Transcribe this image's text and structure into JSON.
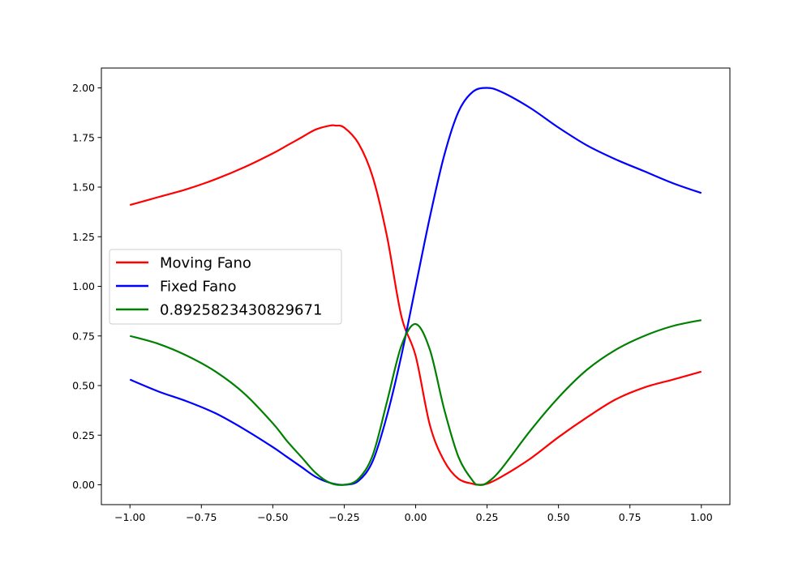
{
  "chart_data": {
    "type": "line",
    "xlim": [
      -1.1,
      1.1
    ],
    "ylim": [
      -0.1,
      2.1
    ],
    "xticks": [
      -1.0,
      -0.75,
      -0.5,
      -0.25,
      0.0,
      0.25,
      0.5,
      0.75,
      1.0
    ],
    "xtick_labels": [
      "−1.00",
      "−0.75",
      "−0.50",
      "−0.25",
      "0.00",
      "0.25",
      "0.50",
      "0.75",
      "1.00"
    ],
    "yticks": [
      0.0,
      0.25,
      0.5,
      0.75,
      1.0,
      1.25,
      1.5,
      1.75,
      2.0
    ],
    "ytick_labels": [
      "0.00",
      "0.25",
      "0.50",
      "0.75",
      "1.00",
      "1.25",
      "1.50",
      "1.75",
      "2.00"
    ],
    "grid": false,
    "legend_position": "center-left",
    "series": [
      {
        "name": "Moving Fano",
        "color": "#ff0000",
        "x": [
          -1.0,
          -0.9,
          -0.8,
          -0.7,
          -0.6,
          -0.5,
          -0.45,
          -0.4,
          -0.35,
          -0.3,
          -0.28,
          -0.25,
          -0.2,
          -0.15,
          -0.1,
          -0.05,
          0.0,
          0.05,
          0.1,
          0.15,
          0.2,
          0.22,
          0.25,
          0.3,
          0.4,
          0.5,
          0.6,
          0.7,
          0.8,
          0.9,
          1.0
        ],
        "values": [
          1.41,
          1.45,
          1.49,
          1.54,
          1.6,
          1.67,
          1.71,
          1.75,
          1.79,
          1.81,
          1.81,
          1.8,
          1.72,
          1.55,
          1.25,
          0.85,
          0.65,
          0.3,
          0.12,
          0.03,
          0.005,
          0.0,
          0.005,
          0.04,
          0.13,
          0.24,
          0.34,
          0.43,
          0.49,
          0.53,
          0.57
        ]
      },
      {
        "name": "Fixed Fano",
        "color": "#0000ff",
        "x": [
          -1.0,
          -0.9,
          -0.8,
          -0.7,
          -0.6,
          -0.5,
          -0.45,
          -0.4,
          -0.35,
          -0.3,
          -0.25,
          -0.2,
          -0.15,
          -0.1,
          -0.05,
          0.0,
          0.05,
          0.1,
          0.15,
          0.2,
          0.25,
          0.3,
          0.4,
          0.5,
          0.6,
          0.7,
          0.8,
          0.9,
          1.0
        ],
        "values": [
          0.53,
          0.47,
          0.42,
          0.36,
          0.28,
          0.19,
          0.14,
          0.09,
          0.04,
          0.01,
          0.0,
          0.02,
          0.12,
          0.35,
          0.65,
          1.0,
          1.35,
          1.66,
          1.88,
          1.98,
          2.0,
          1.98,
          1.9,
          1.8,
          1.71,
          1.64,
          1.58,
          1.52,
          1.47
        ]
      },
      {
        "name": "0.8925823430829671",
        "color": "#008000",
        "x": [
          -1.0,
          -0.9,
          -0.8,
          -0.7,
          -0.6,
          -0.5,
          -0.45,
          -0.4,
          -0.35,
          -0.3,
          -0.25,
          -0.2,
          -0.15,
          -0.1,
          -0.05,
          0.0,
          0.05,
          0.1,
          0.15,
          0.2,
          0.22,
          0.25,
          0.3,
          0.4,
          0.5,
          0.6,
          0.7,
          0.8,
          0.9,
          1.0
        ],
        "values": [
          0.75,
          0.71,
          0.65,
          0.57,
          0.46,
          0.31,
          0.22,
          0.14,
          0.06,
          0.01,
          0.0,
          0.03,
          0.15,
          0.42,
          0.7,
          0.81,
          0.68,
          0.38,
          0.14,
          0.02,
          0.0,
          0.01,
          0.08,
          0.27,
          0.44,
          0.58,
          0.68,
          0.75,
          0.8,
          0.83
        ]
      }
    ]
  }
}
